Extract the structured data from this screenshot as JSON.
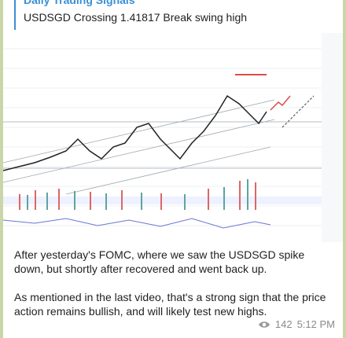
{
  "reply": {
    "title": "Daily Trading Signals",
    "text": "USDSGD Crossing 1.41817 Break swing high"
  },
  "chart": {
    "image_alt": "USDSGD chart"
  },
  "message": {
    "para1": "After yesterday's FOMC, where we saw the USDSGD spike down, but shortly after recovered and went back up.",
    "para2": "As mentioned in the last video, that's a strong sign that the price action remains bullish, and will likely test new highs."
  },
  "footer": {
    "views": "142",
    "time": "5:12 PM",
    "view_icon": "eye-icon"
  }
}
